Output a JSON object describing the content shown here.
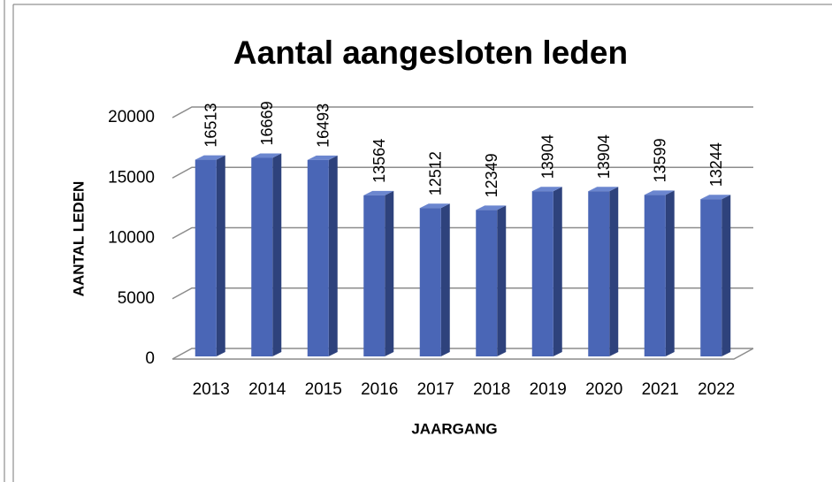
{
  "chart_data": {
    "type": "bar3d",
    "title": "Aantal aangesloten leden",
    "x_label": "JAARGANG",
    "y_label": "AANTAL LEDEN",
    "categories": [
      "2013",
      "2014",
      "2015",
      "2016",
      "2017",
      "2018",
      "2019",
      "2020",
      "2021",
      "2022"
    ],
    "values": [
      16513,
      16669,
      16493,
      13564,
      12512,
      12349,
      13904,
      13904,
      13599,
      13244
    ],
    "color": "#4a66b6",
    "ylim": [
      0,
      20000
    ],
    "yticks": [
      0,
      5000,
      10000,
      15000,
      20000
    ],
    "grid": true
  }
}
